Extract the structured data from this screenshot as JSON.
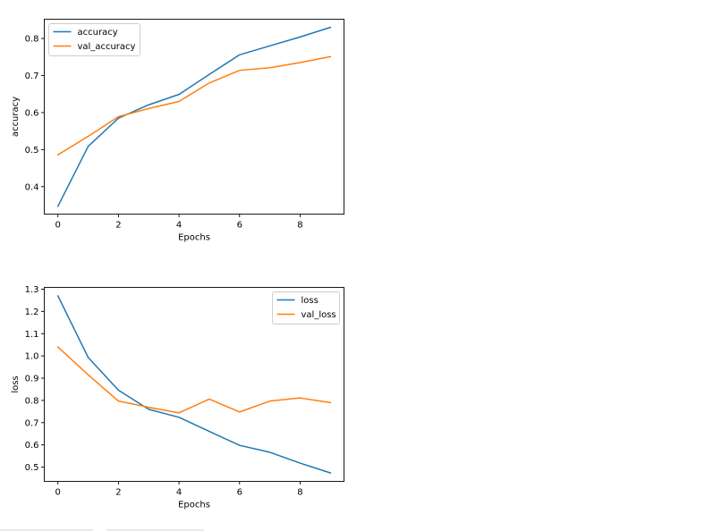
{
  "chart_data": [
    {
      "type": "line",
      "xlabel": "Epochs",
      "ylabel": "accuracy",
      "x": [
        0,
        1,
        2,
        3,
        4,
        5,
        6,
        7,
        8,
        9
      ],
      "xticks": [
        "0",
        "2",
        "4",
        "6",
        "8"
      ],
      "yticks": [
        "0.4",
        "0.5",
        "0.6",
        "0.7",
        "0.8"
      ],
      "xlim": [
        -0.45,
        9.45
      ],
      "ylim": [
        0.326,
        0.852
      ],
      "legend_position": "upper-left",
      "grid": false,
      "series": [
        {
          "name": "accuracy",
          "color": "#1f77b4",
          "values": [
            0.347,
            0.509,
            0.585,
            0.621,
            0.649,
            0.703,
            0.756,
            0.78,
            0.804,
            0.83
          ]
        },
        {
          "name": "val_accuracy",
          "color": "#ff7f0e",
          "values": [
            0.486,
            0.536,
            0.589,
            0.611,
            0.63,
            0.68,
            0.714,
            0.721,
            0.735,
            0.751
          ]
        }
      ]
    },
    {
      "type": "line",
      "xlabel": "Epochs",
      "ylabel": "loss",
      "x": [
        0,
        1,
        2,
        3,
        4,
        5,
        6,
        7,
        8,
        9
      ],
      "xticks": [
        "0",
        "2",
        "4",
        "6",
        "8"
      ],
      "yticks": [
        "0.5",
        "0.6",
        "0.7",
        "0.8",
        "0.9",
        "1.0",
        "1.1",
        "1.2",
        "1.3"
      ],
      "xlim": [
        -0.45,
        9.45
      ],
      "ylim": [
        0.436,
        1.308
      ],
      "legend_position": "upper-right",
      "grid": false,
      "series": [
        {
          "name": "loss",
          "color": "#1f77b4",
          "values": [
            1.27,
            0.993,
            0.846,
            0.76,
            0.724,
            0.661,
            0.598,
            0.567,
            0.518,
            0.474
          ]
        },
        {
          "name": "val_loss",
          "color": "#ff7f0e",
          "values": [
            1.04,
            0.915,
            0.797,
            0.769,
            0.744,
            0.806,
            0.748,
            0.797,
            0.811,
            0.79
          ]
        }
      ]
    }
  ]
}
